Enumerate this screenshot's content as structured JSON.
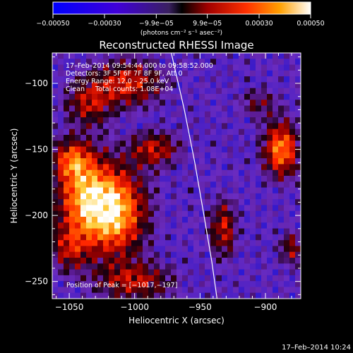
{
  "chart_data": {
    "type": "heatmap",
    "title": "Reconstructed RHESSI Image",
    "xlabel": "Heliocentric X (arcsec)",
    "ylabel": "Heliocentric Y (arcsec)",
    "xlim": [
      -1063,
      -873
    ],
    "ylim": [
      -263,
      -77
    ],
    "xticks": [
      -1050,
      -1000,
      -950,
      -900
    ],
    "xtick_labels": [
      "−1050",
      "−1000",
      "−950",
      "−900"
    ],
    "yticks": [
      -100,
      -150,
      -200,
      -250
    ],
    "ytick_labels": [
      "−100",
      "−150",
      "−200",
      "−250"
    ],
    "colorbar": {
      "range": [
        -0.0005,
        0.0005
      ],
      "ticks": [
        -0.0005,
        -0.0003,
        -9.9e-05,
        9.9e-05,
        0.0003,
        0.0005
      ],
      "tick_labels": [
        "−0.00050",
        "−0.00030",
        "−9.9e−05",
        "9.9e−05",
        "0.00030",
        "0.00050"
      ],
      "unit_label": "(photons cm⁻² s⁻¹ asec⁻²)"
    },
    "annotations": [
      "17–Feb–2014 09:54:44.000 to 09:58:52.000",
      "Detectors: 3F 5F 6F 7F 8F 9F, Att 0",
      "Energy Range: 12.0 – 25.0 keV",
      "Clean     Total counts: 1.08E+04"
    ],
    "peak_label": "Position of Peak = [−1017,−197]",
    "peak": [
      -1017,
      -197
    ],
    "limb_curve": [
      [
        -972,
        -77
      ],
      [
        -962,
        -120
      ],
      [
        -954,
        -160
      ],
      [
        -947,
        -200
      ],
      [
        -941,
        -235
      ],
      [
        -937,
        -263
      ]
    ],
    "sources": [
      {
        "x": -1016,
        "y": -197,
        "sx": 16,
        "sy": 22,
        "amp": 1.0
      },
      {
        "x": -1040,
        "y": -185,
        "sx": 14,
        "sy": 22,
        "amp": 0.72
      },
      {
        "x": -1048,
        "y": -158,
        "sx": 10,
        "sy": 10,
        "amp": 0.55
      },
      {
        "x": -1005,
        "y": -100,
        "sx": 18,
        "sy": 12,
        "amp": 0.55
      },
      {
        "x": -1035,
        "y": -115,
        "sx": 12,
        "sy": 12,
        "amp": 0.45
      },
      {
        "x": -888,
        "y": -150,
        "sx": 9,
        "sy": 14,
        "amp": 0.82
      },
      {
        "x": -985,
        "y": -150,
        "sx": 13,
        "sy": 9,
        "amp": 0.5
      },
      {
        "x": -932,
        "y": -210,
        "sx": 7,
        "sy": 15,
        "amp": 0.5
      },
      {
        "x": -1000,
        "y": -250,
        "sx": 20,
        "sy": 10,
        "amp": 0.48
      },
      {
        "x": -1050,
        "y": -225,
        "sx": 10,
        "sy": 12,
        "amp": 0.42
      },
      {
        "x": -880,
        "y": -225,
        "sx": 7,
        "sy": 9,
        "amp": 0.38
      },
      {
        "x": -905,
        "y": -115,
        "sx": 10,
        "sy": 8,
        "amp": 0.28
      }
    ],
    "colors": {
      "cold": "#0000ff",
      "mid": "#6a2bbf",
      "warm": "#ff3000",
      "hot": "#ffffff"
    }
  },
  "footer": {
    "timestamp": "17–Feb–2014 10:24"
  }
}
